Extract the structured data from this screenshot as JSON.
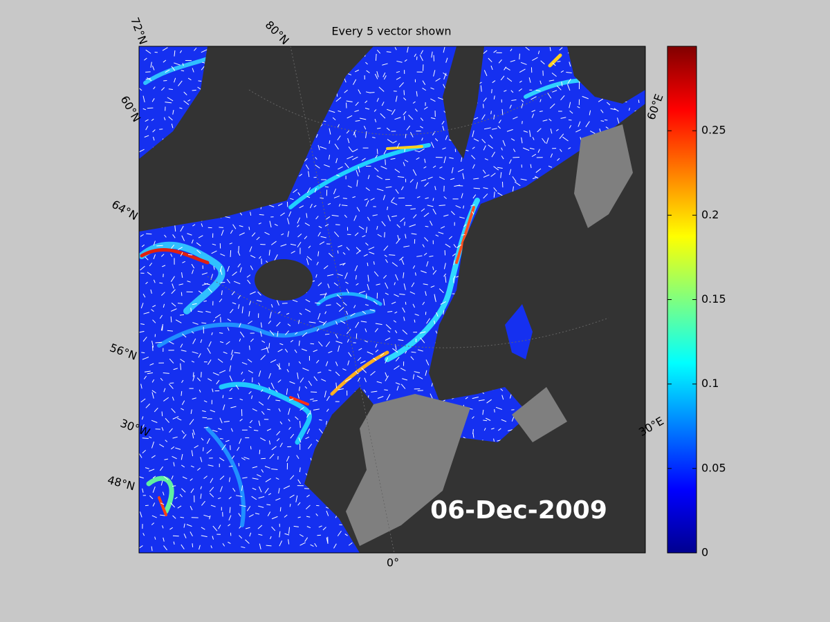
{
  "title": "Every 5 vector shown",
  "date_label": "06-Dec-2009",
  "map_labels": [
    "72°N",
    "80°N",
    "60°N",
    "64°N",
    "56°N",
    "30°W",
    "48°N",
    "0°",
    "30°E",
    "60°E"
  ],
  "colorbar": {
    "ylim": [
      0,
      0.3
    ],
    "yticks": [
      0,
      0.05,
      0.1,
      0.15,
      0.2,
      0.25
    ]
  }
}
